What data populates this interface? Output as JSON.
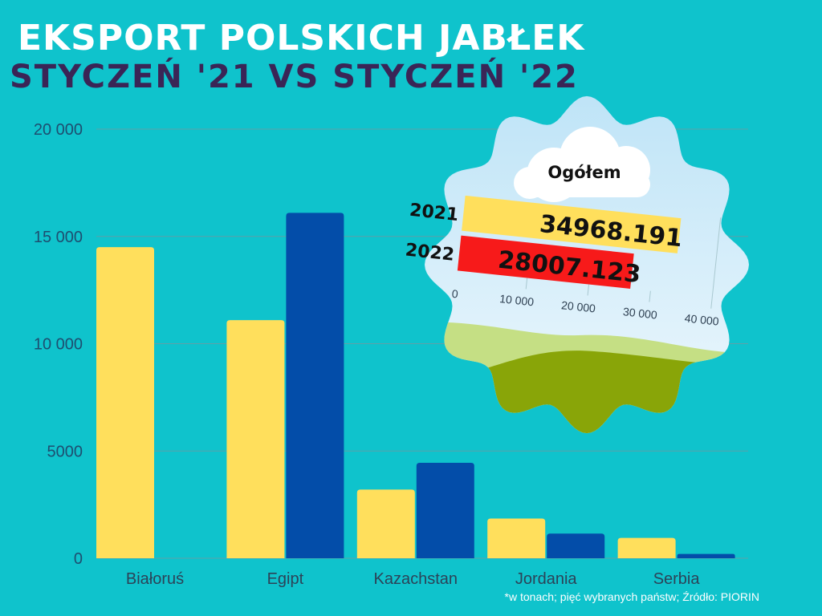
{
  "header": {
    "title": "EKSPORT POLSKICH JABŁEK",
    "subtitle": "STYCZEŃ '21  VS  STYCZEŃ '22"
  },
  "footnote": "*w tonach; pięć wybranych państw; Źródło: PIORIN",
  "colors": {
    "background": "#0fc3cc",
    "year_2021": "#ffdf5c",
    "year_2022": "#034da9",
    "total_2022": "#f71a1a",
    "hill_light": "#c5df84",
    "hill_dark": "#89a508",
    "grid": "#5fa0a8",
    "title_dark": "#3a2556"
  },
  "chart_data": [
    {
      "type": "bar",
      "categories": [
        "Białoruś",
        "Egipt",
        "Kazachstan",
        "Jordania",
        "Serbia"
      ],
      "series": [
        {
          "values": [
            14500,
            11100,
            3200,
            1850,
            950
          ]
        },
        {
          "values": [
            0,
            16100,
            4450,
            1150,
            200
          ]
        }
      ],
      "yticks": [
        "0",
        "5000",
        "10 000",
        "15 000",
        "20 000"
      ],
      "ytick_values": [
        0,
        5000,
        10000,
        15000,
        20000
      ],
      "ylim": [
        0,
        20000
      ],
      "grid": true
    },
    {
      "type": "bar",
      "orientation": "horizontal",
      "title": "Ogółem",
      "categories": [
        "2021",
        "2022"
      ],
      "values": [
        34968.191,
        28007.123
      ],
      "value_labels": [
        "34968.191",
        "28007.123"
      ],
      "xticks": [
        "0",
        "10 000",
        "20 000",
        "30 000",
        "40 000"
      ],
      "xtick_values": [
        0,
        10000,
        20000,
        30000,
        40000
      ],
      "xlim": [
        0,
        40000
      ]
    }
  ]
}
